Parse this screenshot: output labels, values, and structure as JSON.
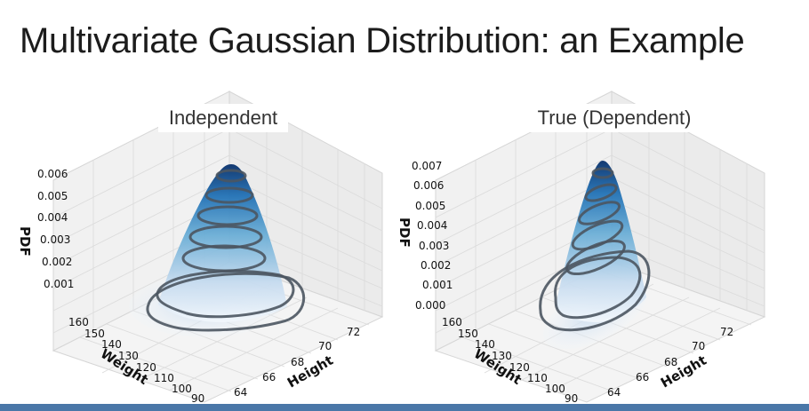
{
  "slide": {
    "title": "Multivariate Gaussian Distribution: an Example"
  },
  "plots": [
    {
      "title": "Independent",
      "z_label": "PDF",
      "x_label": "Weight",
      "y_label": "Height",
      "z_ticks": [
        "0.001",
        "0.002",
        "0.003",
        "0.004",
        "0.005",
        "0.006"
      ],
      "x_ticks": [
        "160",
        "150",
        "140",
        "130",
        "120",
        "110",
        "100",
        "90"
      ],
      "y_ticks": [
        "64",
        "66",
        "68",
        "70",
        "72"
      ]
    },
    {
      "title": "True (Dependent)",
      "z_label": "PDF",
      "x_label": "Weight",
      "y_label": "Height",
      "z_ticks": [
        "0.000",
        "0.001",
        "0.002",
        "0.003",
        "0.004",
        "0.005",
        "0.006",
        "0.007"
      ],
      "x_ticks": [
        "160",
        "150",
        "140",
        "130",
        "120",
        "110",
        "100",
        "90"
      ],
      "y_ticks": [
        "64",
        "66",
        "68",
        "70",
        "72"
      ]
    }
  ],
  "colors": {
    "surface_dark": "#08306b",
    "surface_light": "#deebf7",
    "contour": "#4b5560",
    "bottom_bar": "#4a77a8"
  }
}
